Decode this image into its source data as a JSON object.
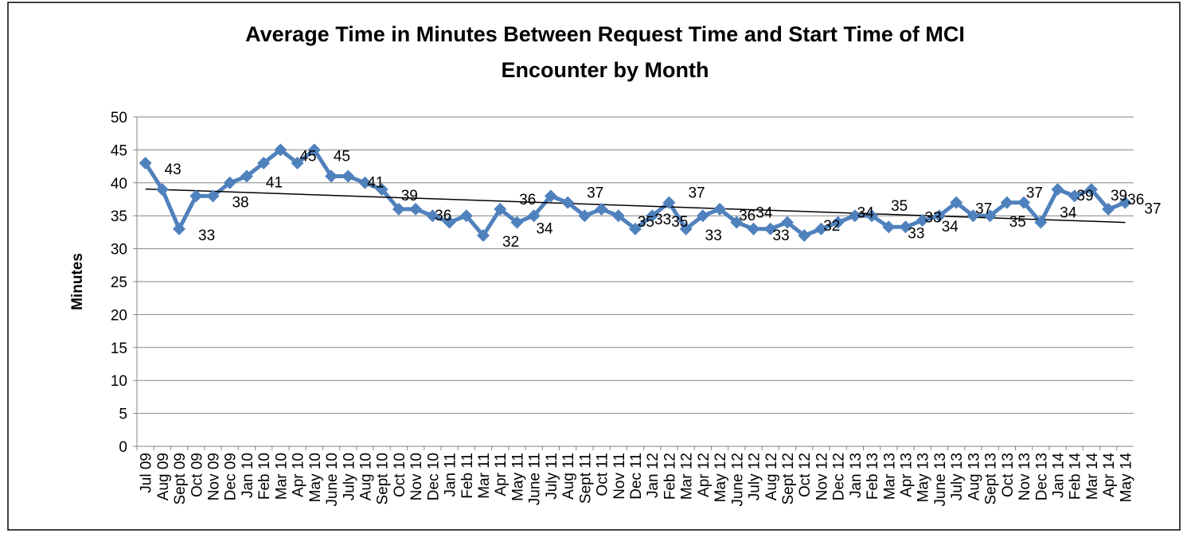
{
  "chart_data": {
    "type": "line",
    "title": [
      "Average Time in Minutes Between Request Time and Start Time of MCI",
      "Encounter by Month"
    ],
    "y_label": "Minutes",
    "categories": [
      "Jul 09",
      "Aug 09",
      "Sept 09",
      "Oct 09",
      "Nov 09",
      "Dec 09",
      "Jan 10",
      "Feb 10",
      "Mar 10",
      "Apr 10",
      "May 10",
      "June 10",
      "July 10",
      "Aug 10",
      "Sept 10",
      "Oct 10",
      "Nov 10",
      "Dec 10",
      "Jan 11",
      "Feb 11",
      "Mar 11",
      "Apr 11",
      "May 11",
      "June 11",
      "July 11",
      "Aug 11",
      "Sept 11",
      "Oct 11",
      "Nov 11",
      "Dec 11",
      "Jan 12",
      "Feb 12",
      "Mar 12",
      "Apr 12",
      "May 12",
      "June 12",
      "July 12",
      "Aug 12",
      "Sept 12",
      "Oct 12",
      "Nov 12",
      "Dec 12",
      "Jan 13",
      "Feb 13",
      "Mar 13",
      "Apr 13",
      "May 13",
      "June 13",
      "July 13",
      "Aug 13",
      "Sept 13",
      "Oct 13",
      "Nov 13",
      "Dec 13",
      "Jan 14",
      "Feb 14",
      "Mar 14",
      "Apr 14",
      "May 14"
    ],
    "series": [
      {
        "name": "Minutes",
        "color": "#4f81bd",
        "values": [
          43,
          39,
          33,
          38,
          38,
          40,
          41,
          43,
          45,
          43,
          45,
          41,
          41,
          40,
          39,
          36,
          36,
          35,
          34,
          35,
          32,
          36,
          34,
          35,
          38,
          37,
          35,
          36,
          35,
          33,
          35,
          37,
          33,
          35,
          36,
          34,
          33,
          33,
          34,
          32,
          33,
          34,
          35,
          35,
          33.3,
          33.3,
          34.3,
          35,
          37,
          35,
          35,
          37,
          37,
          34,
          39,
          38,
          39,
          36,
          37
        ],
        "value_labels": [
          "43",
          null,
          "33",
          null,
          "38",
          null,
          "41",
          null,
          "45",
          null,
          "45",
          null,
          "41",
          null,
          "39",
          null,
          "36",
          null,
          null,
          null,
          "32",
          "36",
          "34",
          null,
          null,
          "37",
          null,
          null,
          "35",
          "33",
          "35",
          "37",
          "33",
          null,
          "36",
          "34",
          "33",
          null,
          null,
          "32",
          null,
          "34",
          null,
          "35",
          "33",
          "33",
          "34",
          null,
          "37",
          null,
          "35",
          "37",
          null,
          "34",
          "39",
          null,
          "39",
          "36",
          "37"
        ]
      }
    ],
    "trendline": true,
    "trendline_color": "#000000",
    "ylim": [
      0,
      50
    ],
    "yticks": [
      0,
      5,
      10,
      15,
      20,
      25,
      30,
      35,
      40,
      45,
      50
    ],
    "grid": true
  }
}
